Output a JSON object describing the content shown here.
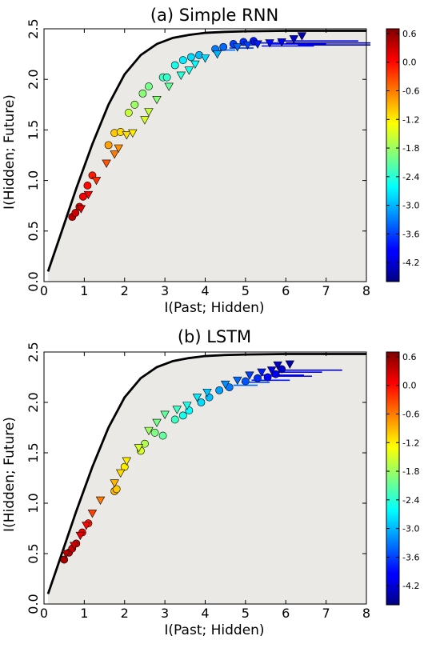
{
  "colorbar": {
    "ticks": [
      "0.6",
      "0.0",
      "-0.6",
      "-1.2",
      "-1.8",
      "-2.4",
      "-3.0",
      "-3.6",
      "-4.2"
    ],
    "range": [
      -4.6,
      0.7
    ]
  },
  "colors": {
    "bound_fill": "#ebe9e6",
    "bound_line": "#000000"
  },
  "chart_data": [
    {
      "type": "scatter",
      "title": "(a) Simple RNN",
      "xlabel": "I(Past; Hidden)",
      "ylabel": "I(Hidden; Future)",
      "xlim": [
        0,
        8
      ],
      "ylim": [
        0,
        2.5
      ],
      "xticks": [
        "0",
        "1",
        "2",
        "3",
        "4",
        "5",
        "6",
        "7",
        "8"
      ],
      "yticks": [
        "0.0",
        "0.5",
        "1.0",
        "1.5",
        "2.0",
        "2.5"
      ],
      "grid": false,
      "bound_curve": {
        "x": [
          0.1,
          0.4,
          0.8,
          1.2,
          1.6,
          2.0,
          2.4,
          2.8,
          3.2,
          3.6,
          4.0,
          4.5,
          5.0,
          6.0,
          7.0,
          8.0
        ],
        "y": [
          0.1,
          0.45,
          0.92,
          1.36,
          1.75,
          2.05,
          2.24,
          2.35,
          2.41,
          2.44,
          2.46,
          2.47,
          2.475,
          2.48,
          2.48,
          2.48
        ]
      },
      "series": [
        {
          "marker": "circle",
          "points": [
            [
              0.7,
              0.64,
              0.4
            ],
            [
              0.78,
              0.68,
              0.3
            ],
            [
              0.88,
              0.74,
              0.2
            ],
            [
              0.97,
              0.84,
              0.1
            ],
            [
              1.08,
              0.95,
              0.0
            ],
            [
              1.2,
              1.05,
              -0.1
            ],
            [
              1.6,
              1.35,
              -0.8
            ],
            [
              1.75,
              1.47,
              -1.0
            ],
            [
              1.9,
              1.48,
              -1.1
            ],
            [
              2.1,
              1.67,
              -1.6
            ],
            [
              2.25,
              1.75,
              -1.8
            ],
            [
              2.45,
              1.86,
              -1.9
            ],
            [
              2.6,
              1.93,
              -2.0
            ],
            [
              2.95,
              2.02,
              -2.3
            ],
            [
              3.05,
              2.02,
              -2.35
            ],
            [
              3.25,
              2.14,
              -2.5
            ],
            [
              3.45,
              2.19,
              -2.7
            ],
            [
              3.65,
              2.22,
              -2.8
            ],
            [
              3.85,
              2.24,
              -2.95
            ],
            [
              4.25,
              2.3,
              -3.3
            ],
            [
              4.45,
              2.32,
              -3.4
            ],
            [
              4.7,
              2.35,
              -3.6
            ],
            [
              4.95,
              2.37,
              -3.7
            ],
            [
              5.2,
              2.38,
              -3.85
            ]
          ]
        },
        {
          "marker": "triangle-down",
          "points": [
            [
              0.92,
              0.72,
              0.2
            ],
            [
              1.1,
              0.86,
              0.1
            ],
            [
              1.3,
              1.0,
              -0.2
            ],
            [
              1.55,
              1.17,
              -0.4
            ],
            [
              1.75,
              1.26,
              -0.6
            ],
            [
              1.85,
              1.32,
              -0.7
            ],
            [
              2.05,
              1.45,
              -1.1
            ],
            [
              2.2,
              1.47,
              -1.2
            ],
            [
              2.5,
              1.6,
              -1.5
            ],
            [
              2.6,
              1.68,
              -1.6
            ],
            [
              2.8,
              1.8,
              -1.9
            ],
            [
              3.1,
              1.93,
              -2.1
            ],
            [
              3.4,
              2.04,
              -2.4
            ],
            [
              3.6,
              2.09,
              -2.5
            ],
            [
              3.75,
              2.15,
              -2.6
            ],
            [
              4.0,
              2.21,
              -2.8
            ],
            [
              4.3,
              2.25,
              -3.0
            ],
            [
              4.8,
              2.32,
              -3.4
            ],
            [
              5.05,
              2.34,
              -3.6
            ],
            [
              5.3,
              2.35,
              -3.8
            ],
            [
              5.6,
              2.36,
              -3.9
            ],
            [
              5.9,
              2.37,
              -4.0
            ],
            [
              6.2,
              2.4,
              -4.2
            ],
            [
              6.4,
              2.43,
              -4.35
            ]
          ]
        }
      ],
      "error_bars": [
        [
          6.2,
          2.36,
          0.2,
          1.9,
          -4.3
        ],
        [
          6.4,
          2.34,
          0.1,
          1.7,
          -4.4
        ],
        [
          6.0,
          2.38,
          0.2,
          1.8,
          -4.2
        ],
        [
          5.7,
          2.35,
          0.1,
          1.3,
          -4.0
        ],
        [
          5.5,
          2.33,
          0.1,
          1.2,
          -3.9
        ],
        [
          5.2,
          2.36,
          0.1,
          0.7,
          -3.8
        ],
        [
          4.7,
          2.31,
          0.1,
          0.5,
          -3.6
        ],
        [
          4.4,
          2.29,
          0.05,
          0.35,
          -3.4
        ],
        [
          4.9,
          2.34,
          0.05,
          0.4,
          -3.7
        ]
      ]
    },
    {
      "type": "scatter",
      "title": "(b) LSTM",
      "xlabel": "I(Past; Hidden)",
      "ylabel": "I(Hidden; Future)",
      "xlim": [
        0,
        8
      ],
      "ylim": [
        0,
        2.5
      ],
      "xticks": [
        "0",
        "1",
        "2",
        "3",
        "4",
        "5",
        "6",
        "7",
        "8"
      ],
      "yticks": [
        "0.0",
        "0.5",
        "1.0",
        "1.5",
        "2.0",
        "2.5"
      ],
      "grid": false,
      "bound_curve": {
        "x": [
          0.1,
          0.4,
          0.8,
          1.2,
          1.6,
          2.0,
          2.4,
          2.8,
          3.2,
          3.6,
          4.0,
          4.5,
          5.0,
          6.0,
          7.0,
          8.0
        ],
        "y": [
          0.1,
          0.45,
          0.92,
          1.36,
          1.75,
          2.05,
          2.24,
          2.35,
          2.41,
          2.44,
          2.46,
          2.47,
          2.475,
          2.48,
          2.48,
          2.48
        ]
      },
      "series": [
        {
          "marker": "circle",
          "points": [
            [
              0.5,
              0.44,
              0.5
            ],
            [
              0.62,
              0.51,
              0.4
            ],
            [
              0.7,
              0.55,
              0.3
            ],
            [
              0.8,
              0.6,
              0.25
            ],
            [
              0.95,
              0.71,
              0.1
            ],
            [
              1.1,
              0.8,
              -0.1
            ],
            [
              1.75,
              1.12,
              -0.9
            ],
            [
              1.8,
              1.14,
              -1.0
            ],
            [
              2.0,
              1.36,
              -1.2
            ],
            [
              2.4,
              1.52,
              -1.5
            ],
            [
              2.5,
              1.59,
              -1.7
            ],
            [
              2.75,
              1.7,
              -1.95
            ],
            [
              2.95,
              1.67,
              -2.1
            ],
            [
              3.25,
              1.83,
              -2.3
            ],
            [
              3.45,
              1.87,
              -2.5
            ],
            [
              3.6,
              1.92,
              -2.6
            ],
            [
              3.9,
              2.0,
              -2.8
            ],
            [
              4.1,
              2.05,
              -2.95
            ],
            [
              4.35,
              2.12,
              -3.1
            ],
            [
              4.6,
              2.15,
              -3.3
            ],
            [
              5.0,
              2.21,
              -3.5
            ],
            [
              5.3,
              2.24,
              -3.7
            ],
            [
              5.55,
              2.25,
              -3.9
            ],
            [
              5.75,
              2.28,
              -4.0
            ],
            [
              5.9,
              2.33,
              -4.2
            ]
          ]
        },
        {
          "marker": "triangle-down",
          "points": [
            [
              0.55,
              0.5,
              0.4
            ],
            [
              0.75,
              0.58,
              0.3
            ],
            [
              0.9,
              0.68,
              0.15
            ],
            [
              1.05,
              0.78,
              0.0
            ],
            [
              1.2,
              0.9,
              -0.3
            ],
            [
              1.4,
              1.03,
              -0.6
            ],
            [
              1.75,
              1.2,
              -0.9
            ],
            [
              1.9,
              1.3,
              -1.1
            ],
            [
              2.05,
              1.42,
              -1.2
            ],
            [
              2.35,
              1.55,
              -1.5
            ],
            [
              2.6,
              1.72,
              -1.8
            ],
            [
              2.8,
              1.8,
              -2.0
            ],
            [
              3.0,
              1.88,
              -2.1
            ],
            [
              3.3,
              1.93,
              -2.3
            ],
            [
              3.55,
              1.97,
              -2.5
            ],
            [
              3.8,
              2.05,
              -2.7
            ],
            [
              4.05,
              2.1,
              -2.9
            ],
            [
              4.5,
              2.18,
              -3.2
            ],
            [
              4.8,
              2.22,
              -3.4
            ],
            [
              5.1,
              2.27,
              -3.6
            ],
            [
              5.4,
              2.3,
              -3.8
            ],
            [
              5.65,
              2.32,
              -4.0
            ],
            [
              5.8,
              2.37,
              -4.2
            ],
            [
              6.1,
              2.38,
              -4.35
            ]
          ]
        }
      ],
      "error_bars": [
        [
          6.1,
          2.32,
          0.2,
          1.3,
          -4.3
        ],
        [
          5.9,
          2.3,
          0.2,
          1.0,
          -4.2
        ],
        [
          5.55,
          2.27,
          0.15,
          0.9,
          -4.0
        ],
        [
          5.3,
          2.22,
          0.15,
          0.8,
          -3.8
        ],
        [
          5.0,
          2.2,
          0.1,
          0.6,
          -3.6
        ],
        [
          4.8,
          2.17,
          0.1,
          0.5,
          -3.4
        ],
        [
          5.75,
          2.26,
          0.1,
          0.9,
          -4.1
        ]
      ]
    }
  ]
}
